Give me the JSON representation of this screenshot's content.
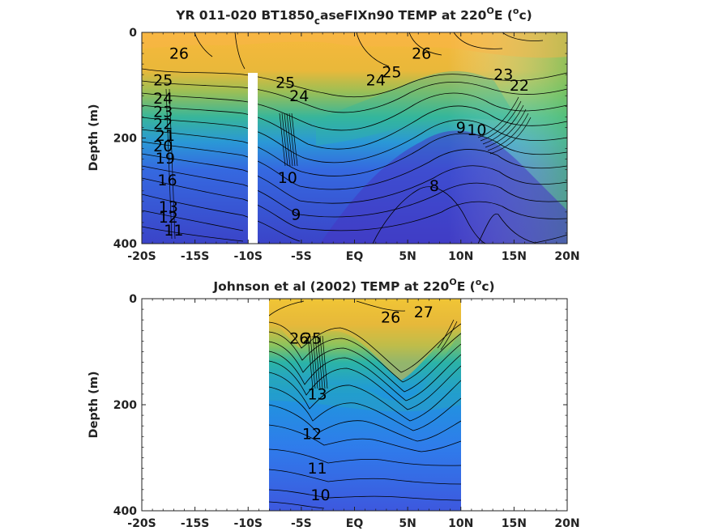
{
  "chart_data": [
    {
      "type": "contour",
      "title_main": "YR 011-020 BT1850",
      "title_sub": "c",
      "title_rest": "aseFIXn90 TEMP at 220",
      "title_deg": "O",
      "title_e": "E (",
      "title_unit_sup": "o",
      "title_end": "c)",
      "ylabel": "Depth (m)",
      "x_ticks": [
        "-20S",
        "-15S",
        "-10S",
        "-5S",
        "EQ",
        "5N",
        "10N",
        "15N",
        "20N"
      ],
      "x_tick_values": [
        -20,
        -15,
        -10,
        -5,
        0,
        5,
        10,
        15,
        20
      ],
      "y_ticks": [
        "0",
        "200",
        "400"
      ],
      "y_tick_values": [
        0,
        200,
        400
      ],
      "xlim": [
        -20,
        20
      ],
      "ylim": [
        400,
        0
      ],
      "data_extent_lat": [
        -20,
        20
      ],
      "colormap": "parula",
      "color_range_degC": [
        8,
        28
      ],
      "contour_labels": [
        {
          "text": "26",
          "lat": -16.5,
          "depth": 50
        },
        {
          "text": "26",
          "lat": 6.3,
          "depth": 50
        },
        {
          "text": "25",
          "lat": -18.0,
          "depth": 100
        },
        {
          "text": "24",
          "lat": -18.0,
          "depth": 135
        },
        {
          "text": "23",
          "lat": -18.0,
          "depth": 160
        },
        {
          "text": "22",
          "lat": -18.0,
          "depth": 183
        },
        {
          "text": "21",
          "lat": -17.8,
          "depth": 205
        },
        {
          "text": "20",
          "lat": -18.0,
          "depth": 225
        },
        {
          "text": "19",
          "lat": -17.8,
          "depth": 248
        },
        {
          "text": "16",
          "lat": -17.6,
          "depth": 290
        },
        {
          "text": "13",
          "lat": -17.5,
          "depth": 340
        },
        {
          "text": "12",
          "lat": -17.5,
          "depth": 360
        },
        {
          "text": "11",
          "lat": -17.0,
          "depth": 385
        },
        {
          "text": "25",
          "lat": -6.5,
          "depth": 105
        },
        {
          "text": "24",
          "lat": -5.2,
          "depth": 130
        },
        {
          "text": "25",
          "lat": 3.5,
          "depth": 85
        },
        {
          "text": "24",
          "lat": 2.0,
          "depth": 100
        },
        {
          "text": "10",
          "lat": -6.3,
          "depth": 285
        },
        {
          "text": "9",
          "lat": -5.5,
          "depth": 355
        },
        {
          "text": "8",
          "lat": 7.5,
          "depth": 300
        },
        {
          "text": "9",
          "lat": 10.0,
          "depth": 190
        },
        {
          "text": "23",
          "lat": 14.0,
          "depth": 90
        },
        {
          "text": "22",
          "lat": 15.5,
          "depth": 110
        },
        {
          "text": "10",
          "lat": 11.5,
          "depth": 195
        }
      ]
    },
    {
      "type": "contour",
      "title_main": "Johnson et al (2002) TEMP at 220",
      "title_deg": "O",
      "title_e": "E (",
      "title_unit_sup": "o",
      "title_end": "c)",
      "ylabel": "Depth (m)",
      "x_ticks": [
        "-20S",
        "-15S",
        "-10S",
        "-5S",
        "EQ",
        "5N",
        "10N",
        "15N",
        "20N"
      ],
      "x_tick_values": [
        -20,
        -15,
        -10,
        -5,
        0,
        5,
        10,
        15,
        20
      ],
      "y_ticks": [
        "0",
        "200",
        "400"
      ],
      "y_tick_values": [
        0,
        200,
        400
      ],
      "xlim": [
        -20,
        20
      ],
      "ylim": [
        400,
        0
      ],
      "data_extent_lat": [
        -8,
        10
      ],
      "colormap": "parula",
      "color_range_degC": [
        8,
        28
      ],
      "contour_labels": [
        {
          "text": "26",
          "lat": 3.4,
          "depth": 45
        },
        {
          "text": "27",
          "lat": 6.5,
          "depth": 35
        },
        {
          "text": "26",
          "lat": -5.2,
          "depth": 85
        },
        {
          "text": "25",
          "lat": -4.0,
          "depth": 85
        },
        {
          "text": "13",
          "lat": -3.5,
          "depth": 190
        },
        {
          "text": "12",
          "lat": -4.0,
          "depth": 265
        },
        {
          "text": "11",
          "lat": -3.5,
          "depth": 330
        },
        {
          "text": "10",
          "lat": -3.2,
          "depth": 380
        }
      ]
    }
  ]
}
